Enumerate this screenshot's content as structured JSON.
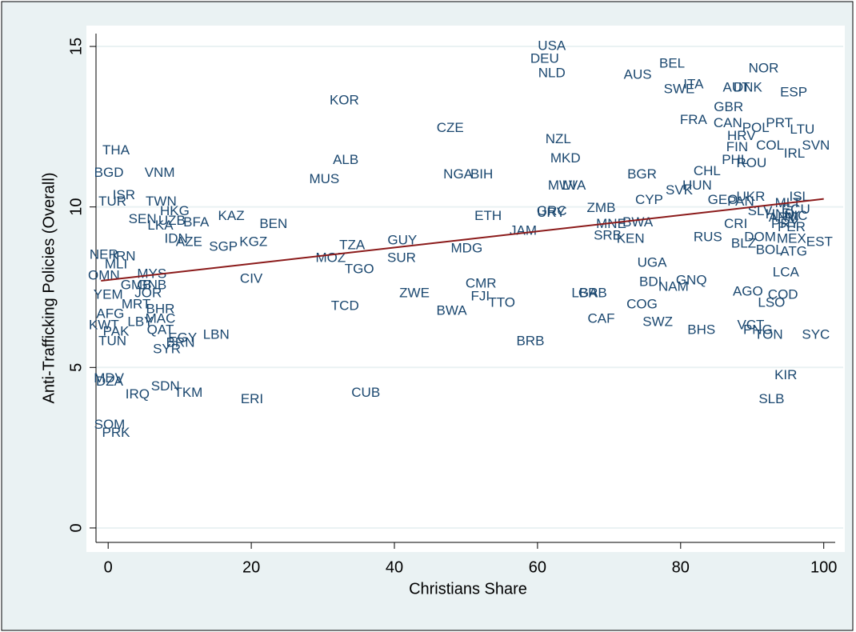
{
  "chart_data": {
    "type": "scatter",
    "xlabel": "Christians Share",
    "ylabel": "Anti-Trafficking Policies (Overall)",
    "xlim": [
      -1.7,
      101.6
    ],
    "ylim": [
      -0.45,
      15.4
    ],
    "xticks": [
      0,
      20,
      40,
      60,
      80,
      100
    ],
    "yticks": [
      0,
      5,
      10,
      15
    ],
    "grid": true,
    "series": [
      {
        "color": "#1a476f",
        "labels": [
          "USA",
          "DEU",
          "NLD",
          "AUS",
          "BEL",
          "NOR",
          "ITA",
          "SWE",
          "AUT",
          "DNK",
          "ESP",
          "KOR",
          "GBR",
          "FRA",
          "CAN",
          "PRT",
          "POL",
          "HRV",
          "CZE",
          "LTU",
          "NZL",
          "SVN",
          "FIN",
          "COL",
          "IRL",
          "THA",
          "ROU",
          "PHL",
          "CHL",
          "MKD",
          "ALB",
          "BGD",
          "VNM",
          "NGA",
          "BIH",
          "MUS",
          "BGR",
          "SVK",
          "HUN",
          "MWI",
          "LVA",
          "CYP",
          "GEO",
          "UKR",
          "PAN",
          "ISL",
          "URY",
          "GRC",
          "ISR",
          "TUR",
          "TWN",
          "HKG",
          "SEN",
          "UZB",
          "LKA",
          "BFA",
          "KAZ",
          "BEN",
          "KGZ",
          "SGP",
          "AZE",
          "IDN",
          "ETH",
          "JAM",
          "ZMB",
          "BWA",
          "MNE",
          "SRB",
          "KEN",
          "RUS",
          "CRI",
          "BLZ",
          "DOM",
          "MEX",
          "EST",
          "BOL",
          "ATG",
          "LCA",
          "UGA",
          "GUY",
          "SUR",
          "MDG",
          "TZA",
          "MOZ",
          "TGO",
          "CIV",
          "MYS",
          "GNB",
          "JOR",
          "YEM",
          "MLI",
          "NER",
          "IRN",
          "OMN",
          "CMR",
          "ZWE",
          "FJI",
          "TTO",
          "BWA",
          "TCD",
          "LBR",
          "GAB",
          "BDI",
          "NAM",
          "GNQ",
          "AGO",
          "COD",
          "LSO",
          "COG",
          "CAF",
          "SWZ",
          "BHS",
          "VCT",
          "PNG",
          "TON",
          "SYC",
          "TUN",
          "BRB",
          "LBN",
          "EGY",
          "SYR",
          "KIR",
          "SLB",
          "MDV",
          "DZA",
          "SDN",
          "IRQ",
          "TKM",
          "ERI",
          "CUB",
          "SOM",
          "PRK",
          "AFG",
          "MAC",
          "MRT",
          "BHR",
          "QAT",
          "LBY",
          "KWT",
          "PAK",
          "GMB",
          "BRN",
          "MLT",
          "SLV",
          "ARM",
          "PRY",
          "PER",
          "NIC",
          "ECU",
          "HND"
        ],
        "x": [
          62.0,
          61.0,
          62.0,
          74.0,
          78.8,
          91.6,
          81.8,
          79.8,
          87.8,
          89.4,
          95.8,
          33.0,
          86.7,
          81.8,
          86.6,
          93.8,
          90.5,
          88.5,
          47.8,
          97.0,
          62.9,
          98.9,
          87.9,
          92.5,
          95.9,
          1.1,
          89.9,
          87.6,
          83.7,
          63.9,
          33.2,
          0.1,
          7.2,
          48.9,
          52.2,
          30.2,
          74.6,
          79.8,
          82.3,
          63.4,
          65.1,
          75.6,
          85.9,
          89.8,
          88.4,
          96.6,
          61.9,
          62.0,
          2.2,
          0.6,
          7.4,
          9.3,
          4.8,
          8.9,
          7.3,
          12.3,
          17.2,
          23.1,
          20.3,
          16.1,
          11.3,
          9.5,
          53.1,
          58.0,
          68.9,
          74.0,
          70.3,
          69.8,
          73.0,
          83.8,
          87.7,
          88.8,
          91.1,
          95.5,
          99.4,
          92.4,
          95.8,
          94.7,
          76.0,
          41.1,
          41.0,
          50.1,
          34.1,
          31.1,
          35.1,
          20.0,
          6.1,
          6.1,
          5.6,
          0.0,
          1.1,
          -0.6,
          2.2,
          -0.6,
          52.1,
          42.8,
          52.0,
          55.0,
          48.0,
          33.1,
          66.6,
          67.7,
          75.8,
          79.0,
          81.5,
          89.4,
          94.3,
          92.7,
          74.6,
          68.9,
          76.8,
          82.9,
          89.8,
          90.8,
          92.3,
          98.9,
          0.6,
          59.0,
          15.1,
          10.4,
          8.2,
          94.7,
          92.7,
          0.1,
          0.2,
          8.0,
          4.1,
          11.2,
          20.1,
          36.0,
          0.2,
          1.1,
          0.3,
          7.3,
          3.9,
          7.3,
          7.3,
          4.5,
          -0.6,
          1.1,
          3.9,
          10.1,
          95.0,
          91.1,
          94.4,
          94.6,
          95.5,
          96.1,
          96.1,
          93.9
        ],
        "values": [
          15.0,
          14.6,
          14.15,
          14.1,
          14.45,
          14.3,
          13.8,
          13.65,
          13.7,
          13.7,
          13.55,
          13.3,
          13.1,
          12.7,
          12.6,
          12.6,
          12.45,
          12.2,
          12.45,
          12.4,
          12.1,
          11.9,
          11.85,
          11.9,
          11.65,
          11.75,
          11.35,
          11.45,
          11.1,
          11.5,
          11.45,
          11.05,
          11.05,
          11.0,
          11.0,
          10.85,
          11.0,
          10.5,
          10.65,
          10.65,
          10.65,
          10.2,
          10.2,
          10.3,
          10.15,
          10.3,
          9.8,
          9.85,
          10.35,
          10.15,
          10.15,
          9.85,
          9.6,
          9.55,
          9.4,
          9.5,
          9.7,
          9.45,
          8.9,
          8.75,
          8.9,
          9.0,
          9.7,
          9.25,
          9.95,
          9.5,
          9.45,
          9.1,
          9.0,
          9.05,
          9.45,
          8.85,
          9.05,
          9.0,
          8.9,
          8.65,
          8.6,
          7.95,
          8.25,
          8.95,
          8.4,
          8.7,
          8.8,
          8.4,
          8.05,
          7.75,
          7.9,
          7.55,
          7.3,
          7.25,
          8.2,
          8.5,
          8.45,
          7.85,
          7.6,
          7.3,
          7.2,
          7.0,
          6.75,
          6.9,
          7.3,
          7.3,
          7.65,
          7.5,
          7.7,
          7.35,
          7.25,
          7.0,
          6.95,
          6.5,
          6.4,
          6.15,
          6.3,
          6.15,
          6.0,
          6.0,
          5.8,
          5.8,
          6.0,
          5.9,
          5.55,
          4.75,
          4.0,
          4.65,
          4.55,
          4.4,
          4.15,
          4.2,
          4.0,
          4.2,
          3.2,
          2.95,
          6.65,
          6.5,
          6.95,
          6.8,
          6.15,
          6.4,
          6.3,
          6.1,
          7.55,
          5.75,
          10.1,
          9.85,
          9.65,
          9.45,
          9.35,
          9.7,
          9.9,
          9.75
        ]
      }
    ],
    "fit": {
      "color": "#8b1a1a",
      "x": [
        -1,
        100
      ],
      "values": [
        7.7,
        10.25
      ]
    }
  }
}
